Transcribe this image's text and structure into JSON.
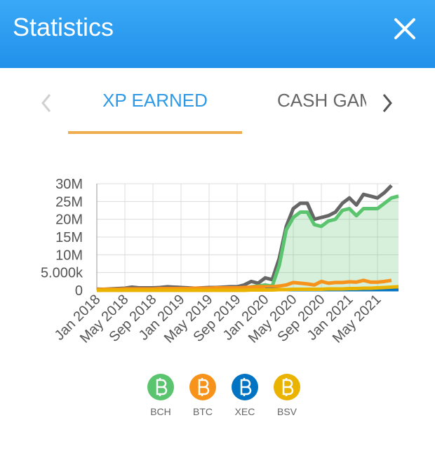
{
  "header": {
    "title": "Statistics"
  },
  "tabs": [
    "XP EARNED",
    "CASH GAME"
  ],
  "chart_data": {
    "type": "line",
    "grid": true,
    "categories": [
      "Jan 2018",
      null,
      null,
      null,
      "May 2018",
      null,
      null,
      null,
      "Sep 2018",
      null,
      null,
      null,
      "Jan 2019",
      null,
      null,
      null,
      "May 2019",
      null,
      null,
      null,
      "Sep 2019",
      null,
      null,
      null,
      "Jan 2020",
      null,
      null,
      null,
      "May 2020",
      null,
      null,
      null,
      "Sep 2020",
      null,
      null,
      null,
      "Jan 2021",
      null,
      null,
      null,
      "May 2021",
      null,
      null,
      null
    ],
    "ylim": [
      0,
      30000000
    ],
    "yticks": [
      0,
      {
        "value": 5000000,
        "label": "5.000k"
      },
      {
        "value": 10000000,
        "label": "10M"
      },
      {
        "value": 15000000,
        "label": "15M"
      },
      {
        "value": 20000000,
        "label": "20M"
      },
      {
        "value": 25000000,
        "label": "25M"
      },
      {
        "value": 30000000,
        "label": "30M"
      }
    ],
    "series": [
      {
        "color": "#666666",
        "values": [
          300000,
          300000,
          400000,
          500000,
          600000,
          900000,
          700000,
          700000,
          700000,
          800000,
          1000000,
          900000,
          800000,
          700000,
          600000,
          700000,
          800000,
          800000,
          900000,
          1000000,
          1000000,
          1500000,
          2500000,
          2000000,
          3500000,
          3000000,
          9000000,
          18000000,
          23000000,
          24500000,
          24500000,
          20000000,
          20500000,
          21000000,
          22000000,
          24500000,
          26000000,
          24000000,
          27000000,
          26500000,
          26000000,
          27500000,
          29500000,
          null
        ]
      },
      {
        "name": "BCH",
        "color": "#5ac46e",
        "fill": true,
        "values": [
          100000,
          100000,
          100000,
          100000,
          100000,
          100000,
          100000,
          100000,
          100000,
          100000,
          100000,
          100000,
          200000,
          200000,
          200000,
          200000,
          200000,
          200000,
          200000,
          300000,
          300000,
          500000,
          1000000,
          1200000,
          1500000,
          1200000,
          7000000,
          17000000,
          20500000,
          22000000,
          22000000,
          18500000,
          18000000,
          19500000,
          20000000,
          22500000,
          23000000,
          21000000,
          23000000,
          23000000,
          23000000,
          24500000,
          26000000,
          26500000
        ]
      },
      {
        "name": "BTC",
        "color": "#f7931a",
        "values": [
          200000,
          300000,
          300000,
          300000,
          400000,
          400000,
          400000,
          400000,
          400000,
          500000,
          500000,
          500000,
          500000,
          500000,
          600000,
          600000,
          600000,
          700000,
          700000,
          700000,
          700000,
          800000,
          900000,
          1000000,
          1000000,
          1000000,
          1200000,
          1500000,
          2200000,
          2000000,
          1800000,
          1500000,
          2500000,
          2000000,
          2200000,
          2200000,
          2400000,
          2300000,
          2800000,
          2300000,
          2300000,
          2500000,
          2800000,
          null
        ]
      },
      {
        "name": "XEC",
        "color": "#0074c2",
        "values": [
          null,
          null,
          null,
          null,
          null,
          null,
          null,
          null,
          null,
          null,
          null,
          null,
          null,
          null,
          null,
          null,
          null,
          null,
          null,
          null,
          null,
          null,
          null,
          null,
          200000,
          200000,
          200000,
          200000,
          200000,
          200000,
          200000,
          200000,
          200000,
          200000,
          200000,
          200000,
          200000,
          200000,
          200000,
          200000,
          200000,
          200000,
          200000,
          200000
        ]
      },
      {
        "name": "BSV",
        "color": "#eab300",
        "values": [
          0,
          0,
          0,
          0,
          0,
          0,
          0,
          0,
          0,
          0,
          0,
          0,
          0,
          0,
          0,
          0,
          0,
          0,
          0,
          0,
          0,
          0,
          100000,
          100000,
          100000,
          100000,
          200000,
          200000,
          300000,
          300000,
          300000,
          300000,
          300000,
          400000,
          400000,
          400000,
          500000,
          500000,
          600000,
          600000,
          700000,
          800000,
          900000,
          1000000
        ]
      }
    ]
  }
}
